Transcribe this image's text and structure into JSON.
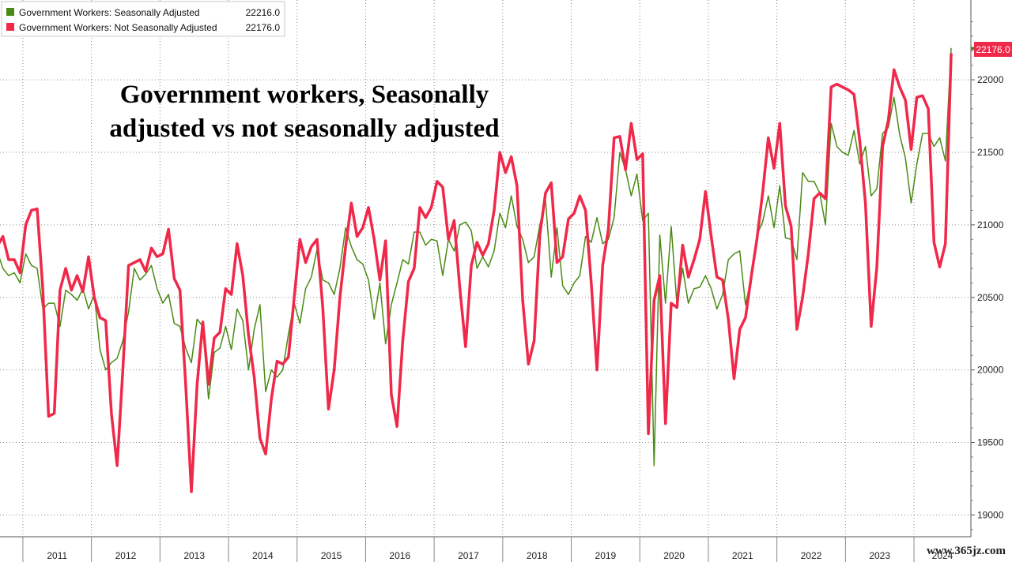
{
  "chart_data": {
    "type": "line",
    "title": "Government workers, Seasonally adjusted vs not seasonally adjusted",
    "title_lines": [
      "Government workers, Seasonally",
      "adjusted vs not seasonally adjusted"
    ],
    "xlabel": "",
    "ylabel": "",
    "ylim": [
      18850,
      22550
    ],
    "y_ticks": [
      19000,
      19500,
      20000,
      20500,
      21000,
      21500,
      22000
    ],
    "y_tick_labels": [
      "19000",
      "19500",
      "20000",
      "20500",
      "21000",
      "21500",
      "22000"
    ],
    "x_start": "2010-08",
    "x_tick_labels": [
      "2011",
      "2012",
      "2013",
      "2014",
      "2015",
      "2016",
      "2017",
      "2018",
      "2019",
      "2020",
      "2021",
      "2022",
      "2023",
      "2024"
    ],
    "grid": true,
    "legend_position": "top-left",
    "legend_entries": [
      {
        "label": "Government Workers: Seasonally Adjusted",
        "value": "22216.0",
        "color": "#4a8a14"
      },
      {
        "label": "Government Workers: Not Seasonally Adjusted",
        "value": "22176.0",
        "color": "#f0284a"
      }
    ],
    "last_value_label": "22176.0",
    "series": [
      {
        "name": "Government Workers: Seasonally Adjusted",
        "color": "#4a8a14",
        "values": [
          20820,
          20700,
          20650,
          20670,
          20600,
          20800,
          20720,
          20700,
          20420,
          20460,
          20460,
          20300,
          20550,
          20520,
          20480,
          20560,
          20420,
          20520,
          20140,
          20000,
          20050,
          20080,
          20200,
          20400,
          20700,
          20620,
          20660,
          20720,
          20560,
          20460,
          20520,
          20320,
          20300,
          20150,
          20050,
          20350,
          20300,
          19800,
          20120,
          20150,
          20300,
          20140,
          20420,
          20340,
          20000,
          20280,
          20450,
          19850,
          20000,
          19950,
          20000,
          20250,
          20460,
          20320,
          20560,
          20640,
          20830,
          20620,
          20600,
          20520,
          20700,
          20980,
          20850,
          20760,
          20730,
          20620,
          20350,
          20600,
          20180,
          20450,
          20600,
          20760,
          20730,
          20950,
          20950,
          20860,
          20900,
          20890,
          20650,
          20900,
          20820,
          21000,
          21020,
          20960,
          20700,
          20780,
          20710,
          20820,
          21080,
          20980,
          21200,
          20990,
          20900,
          20740,
          20780,
          21000,
          21170,
          20640,
          20980,
          20580,
          20520,
          20600,
          20650,
          20920,
          20880,
          21050,
          20870,
          20900,
          21050,
          21500,
          21380,
          21200,
          21350,
          21030,
          21080,
          19340,
          20930,
          20460,
          20990,
          20450,
          20700,
          20460,
          20560,
          20570,
          20650,
          20560,
          20420,
          20520,
          20760,
          20800,
          20820,
          20450,
          20630,
          20930,
          21020,
          21200,
          20980,
          21270,
          20910,
          20900,
          20760,
          21360,
          21300,
          21300,
          21220,
          21000,
          21700,
          21540,
          21500,
          21480,
          21650,
          21420,
          21540,
          21200,
          21250,
          21630,
          21670,
          21880,
          21620,
          21460,
          21150,
          21420,
          21630,
          21630,
          21540,
          21600,
          21440,
          22216
        ]
      },
      {
        "name": "Government Workers: Not Seasonally Adjusted",
        "color": "#f0284a",
        "values": [
          20850,
          20920,
          20760,
          20760,
          20670,
          21000,
          21100,
          21110,
          20550,
          19680,
          19700,
          20550,
          20700,
          20550,
          20650,
          20540,
          20780,
          20500,
          20360,
          20340,
          19700,
          19340,
          20000,
          20720,
          20740,
          20760,
          20680,
          20840,
          20780,
          20800,
          20970,
          20630,
          20550,
          19900,
          19160,
          19900,
          20330,
          19900,
          20220,
          20260,
          20560,
          20520,
          20870,
          20650,
          20240,
          19950,
          19530,
          19420,
          19800,
          20060,
          20040,
          20090,
          20500,
          20900,
          20740,
          20850,
          20900,
          20430,
          19730,
          20000,
          20500,
          20850,
          21150,
          20920,
          20980,
          21120,
          20900,
          20620,
          20890,
          19830,
          19610,
          20200,
          20610,
          20700,
          21120,
          21050,
          21120,
          21300,
          21260,
          20900,
          21030,
          20560,
          20160,
          20720,
          20880,
          20790,
          20870,
          21100,
          21500,
          21360,
          21470,
          21270,
          20480,
          20040,
          20200,
          20930,
          21220,
          21290,
          20740,
          20780,
          21040,
          21080,
          21200,
          21100,
          20600,
          20000,
          20720,
          20970,
          21600,
          21610,
          21380,
          21700,
          21450,
          21490,
          19560,
          20480,
          20650,
          19630,
          20460,
          20430,
          20860,
          20640,
          20760,
          20900,
          21230,
          20920,
          20640,
          20620,
          20350,
          19940,
          20280,
          20360,
          20640,
          20900,
          21220,
          21600,
          21390,
          21700,
          21130,
          20990,
          20280,
          20500,
          20800,
          21180,
          21220,
          21180,
          21950,
          21970,
          21950,
          21930,
          21900,
          21580,
          21150,
          20300,
          20710,
          21540,
          21720,
          22070,
          21950,
          21860,
          21520,
          21880,
          21890,
          21800,
          20880,
          20710,
          20870,
          22176
        ]
      }
    ]
  },
  "watermark": "www.365jz.com"
}
